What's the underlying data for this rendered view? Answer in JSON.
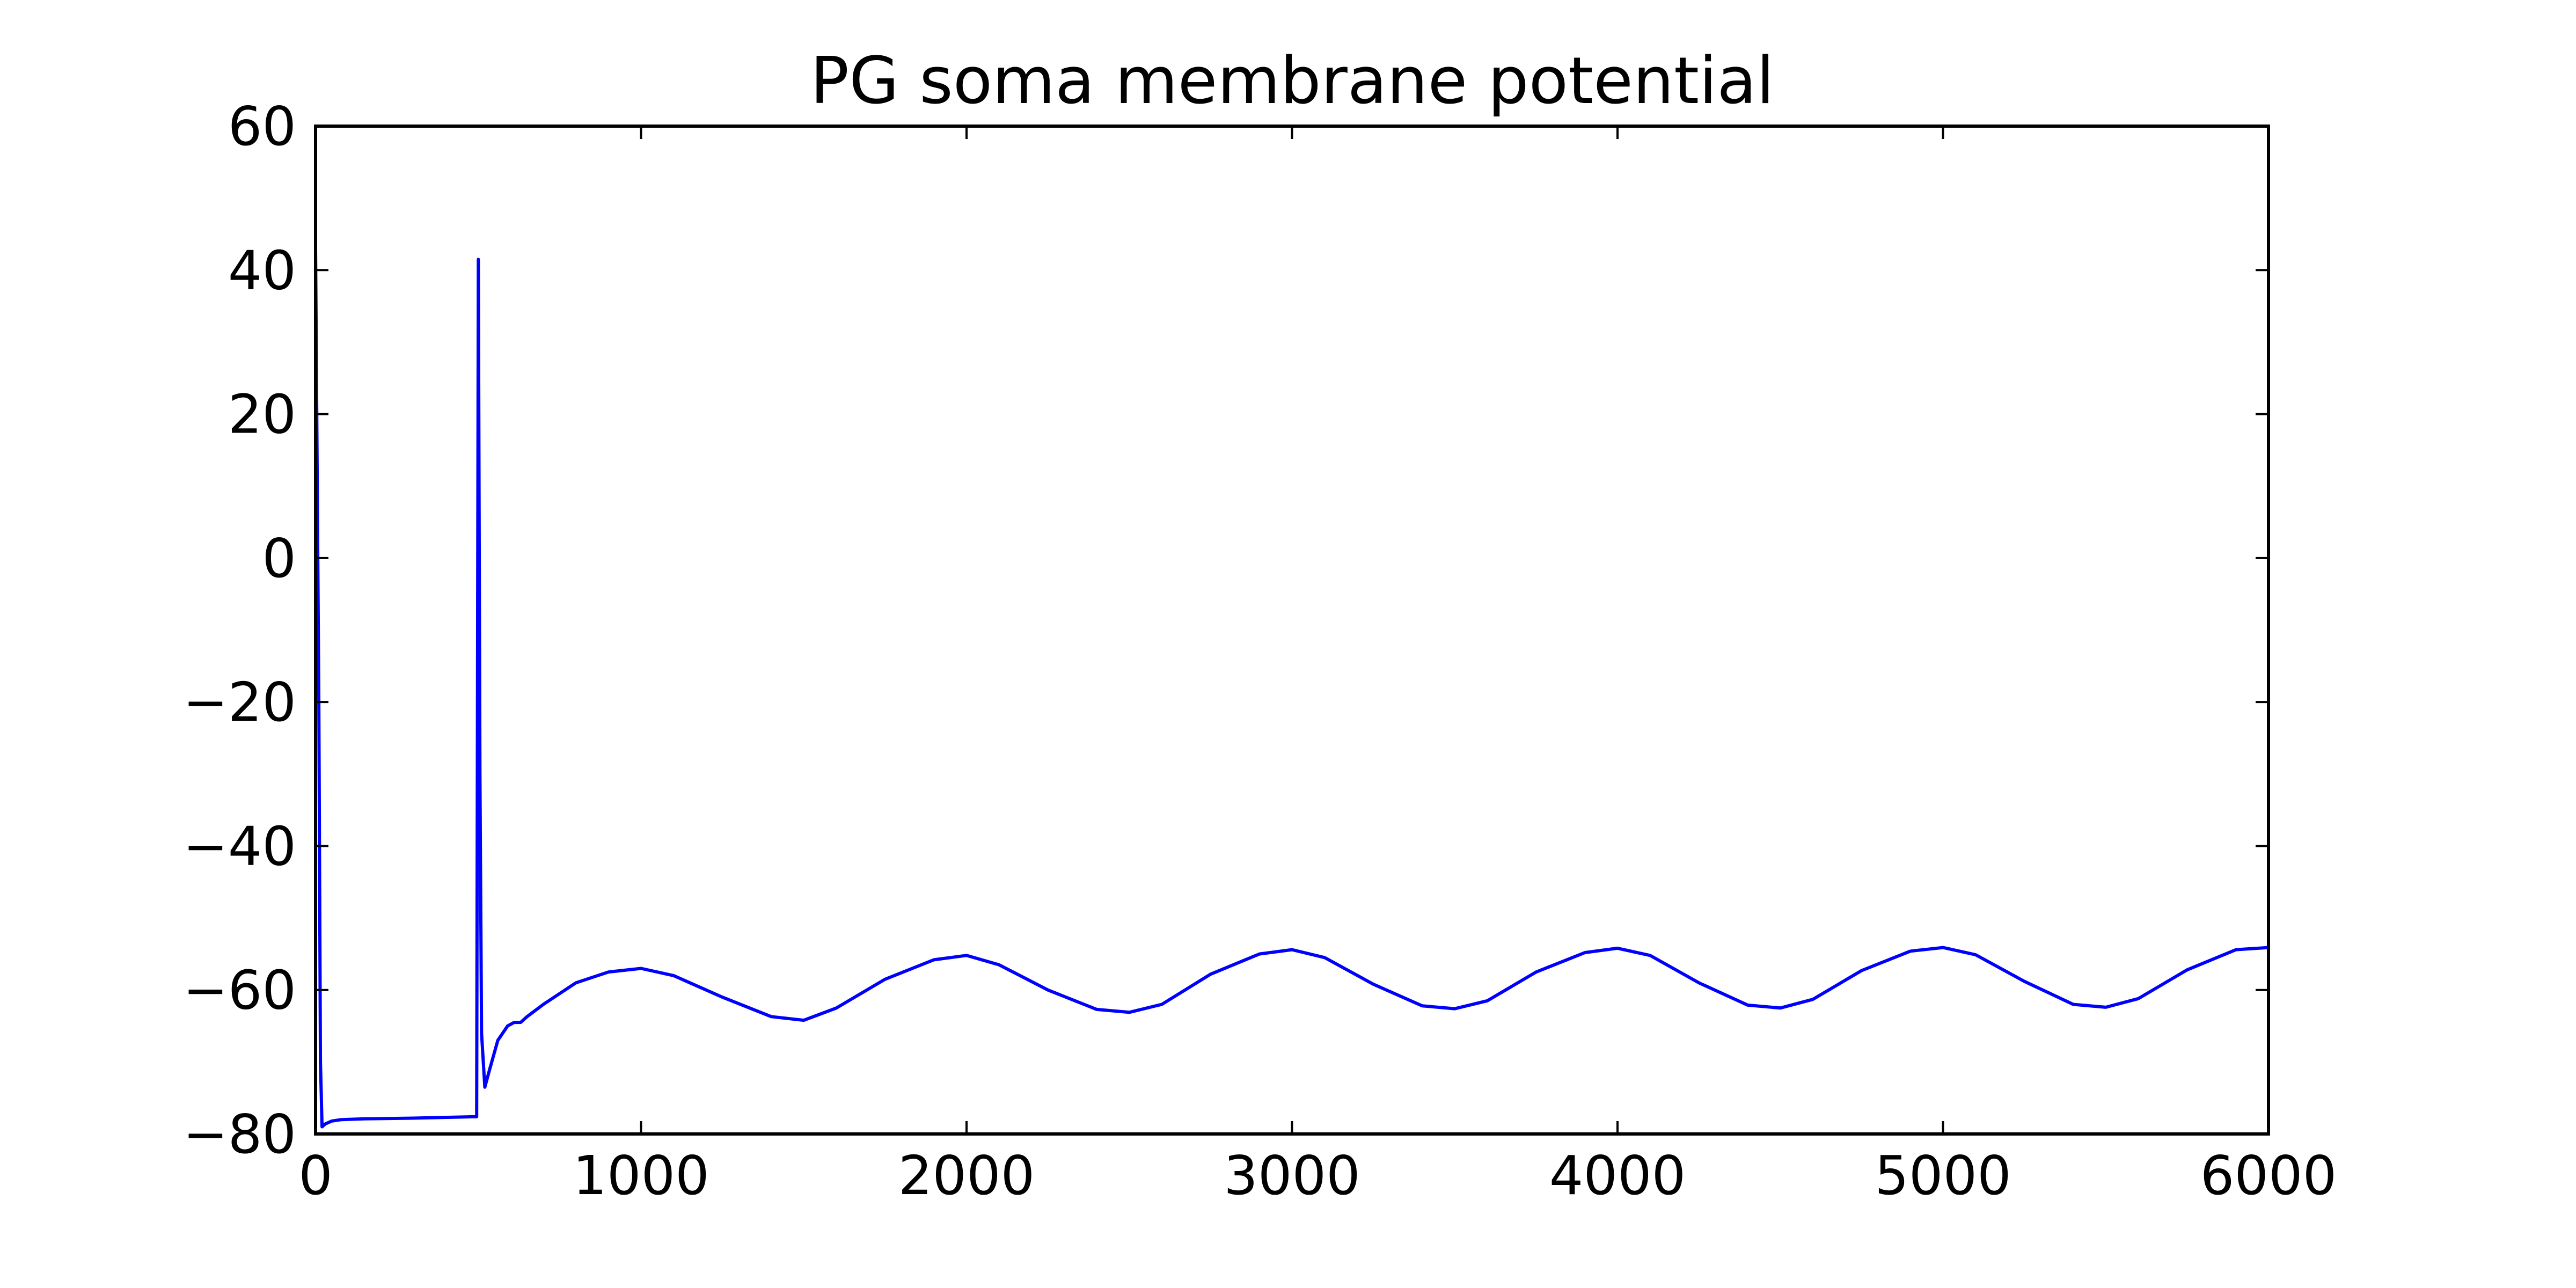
{
  "chart_data": {
    "type": "line",
    "title": "PG soma membrane potential",
    "xlabel": "",
    "ylabel": "",
    "xlim": [
      0,
      6000
    ],
    "ylim": [
      -80,
      60
    ],
    "x_ticks": [
      "0",
      "1000",
      "2000",
      "3000",
      "4000",
      "5000",
      "6000"
    ],
    "y_ticks": [
      "60",
      "40",
      "20",
      "0",
      "−20",
      "−40",
      "−60",
      "−80"
    ],
    "x_tick_values": [
      0,
      1000,
      2000,
      3000,
      4000,
      5000,
      6000
    ],
    "y_tick_values": [
      60,
      40,
      20,
      0,
      -20,
      -40,
      -60,
      -80
    ],
    "grid": false,
    "series": [
      {
        "color": "#0000ff",
        "x": [
          0,
          10,
          15,
          20,
          30,
          50,
          80,
          150,
          300,
          495,
          500,
          505,
          510,
          520,
          535,
          560,
          590,
          610,
          630,
          650,
          700,
          800,
          900,
          1000,
          1100,
          1250,
          1400,
          1500,
          1600,
          1750,
          1900,
          2000,
          2100,
          2250,
          2400,
          2500,
          2600,
          2750,
          2900,
          3000,
          3100,
          3250,
          3400,
          3500,
          3600,
          3750,
          3900,
          4000,
          4100,
          4250,
          4400,
          4500,
          4600,
          4750,
          4900,
          5000,
          5100,
          5250,
          5400,
          5500,
          5600,
          5750,
          5900,
          6000
        ],
        "y": [
          43,
          -20,
          -70,
          -79,
          -78.6,
          -78.2,
          -78,
          -77.9,
          -77.8,
          -77.6,
          41.5,
          -30,
          -66,
          -73.5,
          -71,
          -67,
          -65,
          -64.5,
          -64.5,
          -63.7,
          -62,
          -59,
          -57.5,
          -57,
          -58,
          -61,
          -63.7,
          -64.2,
          -62.5,
          -58.5,
          -55.8,
          -55.2,
          -56.5,
          -60,
          -62.7,
          -63.1,
          -62,
          -57.8,
          -55,
          -54.4,
          -55.5,
          -59.2,
          -62.2,
          -62.6,
          -61.5,
          -57.5,
          -54.8,
          -54.2,
          -55.2,
          -59,
          -62.1,
          -62.5,
          -61.3,
          -57.3,
          -54.6,
          -54.1,
          -55.1,
          -58.8,
          -62,
          -62.4,
          -61.2,
          -57.2,
          -54.4,
          -54.1
        ]
      }
    ]
  }
}
